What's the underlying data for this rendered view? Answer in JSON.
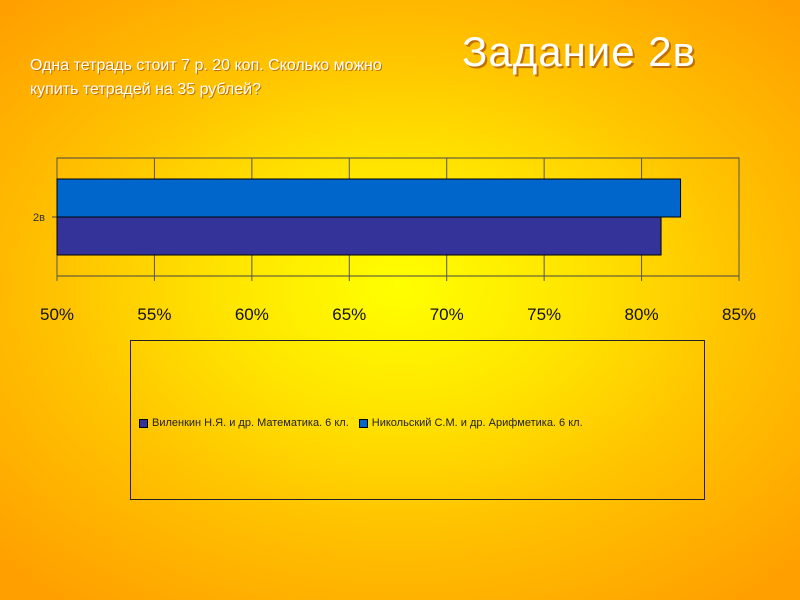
{
  "slide": {
    "question": "Одна тетрадь стоит 7 р. 20 коп. Сколько можно купить тетрадей на 35 рублей?",
    "title": "Задание 2в"
  },
  "chart_data": {
    "type": "bar",
    "orientation": "horizontal",
    "categories": [
      "2в"
    ],
    "series": [
      {
        "name": "Виленкин Н.Я. и др. Математика. 6 кл.",
        "values": [
          0.81
        ],
        "color": "#333399"
      },
      {
        "name": "Никольский С.М. и др. Арифметика. 6 кл.",
        "values": [
          0.82
        ],
        "color": "#0066cc"
      }
    ],
    "xlim": [
      0.5,
      0.85
    ],
    "xticks": [
      "50%",
      "55%",
      "60%",
      "65%",
      "70%",
      "75%",
      "80%",
      "85%"
    ],
    "grid": true,
    "legend_position": "bottom"
  }
}
